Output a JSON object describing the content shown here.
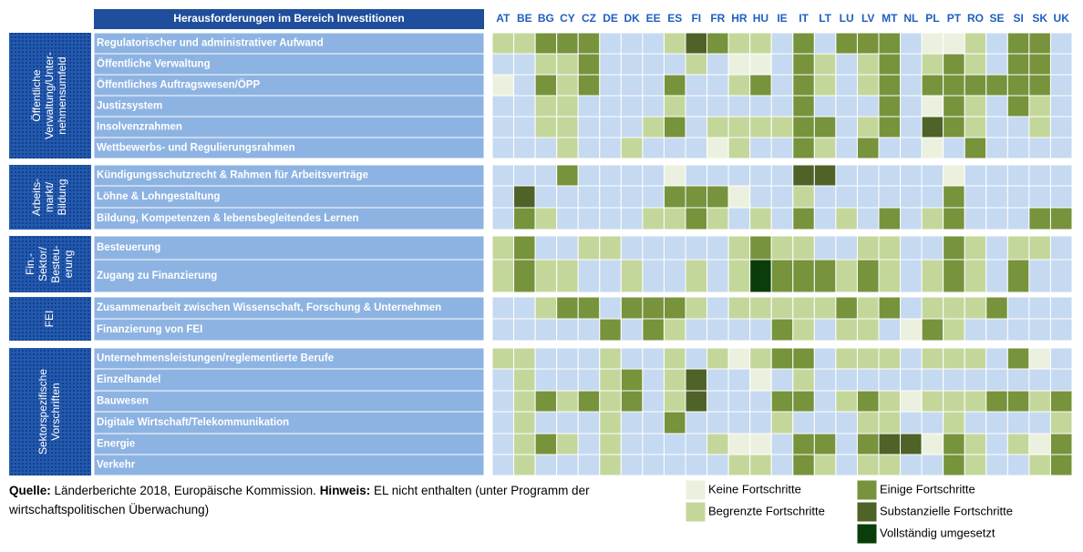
{
  "header": {
    "title": "Herausforderungen im Bereich Investitionen",
    "countries": [
      "AT",
      "BE",
      "BG",
      "CY",
      "CZ",
      "DE",
      "DK",
      "EE",
      "ES",
      "FI",
      "FR",
      "HR",
      "HU",
      "IE",
      "IT",
      "LT",
      "LU",
      "LV",
      "MT",
      "NL",
      "PL",
      "PT",
      "RO",
      "SE",
      "SI",
      "SK",
      "UK"
    ]
  },
  "no_rating_color": "#c5d9f1",
  "legend": [
    {
      "label": "Keine Fortschritte",
      "color": "#ebf1de"
    },
    {
      "label": "Begrenzte Fortschritte",
      "color": "#c4d79b"
    },
    {
      "label": "Einige Fortschritte",
      "color": "#77933c"
    },
    {
      "label": "Substanzielle Fortschritte",
      "color": "#4f6228"
    },
    {
      "label": "Vollständig umgesetzt",
      "color": "#0a3d0a"
    }
  ],
  "groups": [
    {
      "label": [
        "Öffentliche",
        "Verwaltung/Unter-",
        "nehmensumfeld"
      ],
      "rows": [
        {
          "label": "Regulatorischer und administrativer Aufwand",
          "cells": [
            2,
            2,
            3,
            3,
            3,
            0,
            0,
            0,
            2,
            4,
            3,
            2,
            2,
            0,
            3,
            0,
            3,
            3,
            3,
            0,
            1,
            1,
            2,
            0,
            3,
            3,
            0
          ]
        },
        {
          "label": "Öffentliche Verwaltung",
          "cells": [
            0,
            0,
            2,
            2,
            3,
            0,
            0,
            0,
            0,
            2,
            0,
            1,
            1,
            0,
            3,
            2,
            0,
            2,
            3,
            0,
            2,
            3,
            2,
            0,
            3,
            3,
            0
          ]
        },
        {
          "label": "Öffentliches Auftragswesen/ÖPP",
          "cells": [
            1,
            0,
            3,
            2,
            3,
            0,
            0,
            0,
            3,
            0,
            0,
            2,
            3,
            0,
            3,
            2,
            0,
            2,
            3,
            0,
            3,
            3,
            3,
            3,
            3,
            3,
            0
          ]
        },
        {
          "label": "Justizsystem",
          "cells": [
            0,
            0,
            2,
            2,
            0,
            0,
            0,
            0,
            2,
            0,
            0,
            0,
            0,
            0,
            3,
            0,
            0,
            0,
            3,
            0,
            1,
            3,
            2,
            0,
            3,
            2,
            0
          ]
        },
        {
          "label": "Insolvenzrahmen",
          "cells": [
            0,
            0,
            2,
            2,
            0,
            0,
            0,
            2,
            3,
            0,
            2,
            2,
            2,
            2,
            3,
            3,
            0,
            2,
            3,
            0,
            4,
            3,
            2,
            0,
            0,
            2,
            0
          ]
        },
        {
          "label": "Wettbewerbs- und Regulierungsrahmen",
          "cells": [
            0,
            0,
            0,
            2,
            0,
            0,
            2,
            0,
            0,
            0,
            1,
            2,
            0,
            0,
            3,
            2,
            0,
            3,
            0,
            0,
            1,
            0,
            3,
            0,
            0,
            0,
            0
          ]
        }
      ]
    },
    {
      "label": [
        "Arbeits-",
        "markt/",
        "Bildung"
      ],
      "rows": [
        {
          "label": "Kündigungsschutzrecht & Rahmen für Arbeitsverträge",
          "cells": [
            0,
            0,
            0,
            3,
            0,
            0,
            0,
            0,
            1,
            0,
            0,
            0,
            0,
            0,
            4,
            4,
            0,
            0,
            0,
            0,
            0,
            1,
            0,
            0,
            0,
            0,
            0
          ]
        },
        {
          "label": "Löhne & Lohngestaltung",
          "cells": [
            0,
            4,
            0,
            0,
            0,
            0,
            0,
            0,
            3,
            3,
            3,
            1,
            0,
            0,
            2,
            0,
            0,
            0,
            0,
            0,
            0,
            3,
            0,
            0,
            0,
            0,
            0
          ]
        },
        {
          "label": "Bildung, Kompetenzen & lebensbegleitendes Lernen",
          "cells": [
            0,
            3,
            2,
            0,
            0,
            0,
            0,
            2,
            2,
            3,
            2,
            0,
            2,
            0,
            3,
            0,
            2,
            0,
            3,
            0,
            2,
            3,
            0,
            0,
            0,
            3,
            3
          ]
        }
      ]
    },
    {
      "label": [
        "Fin.-",
        "Sektor/",
        "Besteu-",
        "erung"
      ],
      "rows": [
        {
          "label": "Besteuerung",
          "cells": [
            2,
            3,
            0,
            0,
            2,
            2,
            0,
            0,
            0,
            0,
            0,
            2,
            3,
            2,
            2,
            0,
            0,
            2,
            2,
            0,
            0,
            3,
            2,
            0,
            2,
            2,
            0
          ]
        },
        {
          "label": "Zugang zu Finanzierung",
          "cells": [
            2,
            3,
            2,
            2,
            0,
            0,
            2,
            0,
            0,
            2,
            0,
            2,
            5,
            3,
            3,
            3,
            2,
            3,
            2,
            0,
            2,
            3,
            2,
            0,
            3,
            0,
            0
          ]
        }
      ]
    },
    {
      "label": [
        "FEI"
      ],
      "rows": [
        {
          "label": "Zusammenarbeit zwischen Wissenschaft, Forschung & Unternehmen",
          "cells": [
            0,
            0,
            2,
            3,
            3,
            0,
            3,
            3,
            3,
            2,
            0,
            2,
            2,
            2,
            2,
            2,
            3,
            2,
            3,
            0,
            2,
            2,
            2,
            3,
            0,
            0,
            0
          ]
        },
        {
          "label": "Finanzierung von FEI",
          "cells": [
            0,
            0,
            0,
            0,
            0,
            3,
            0,
            3,
            2,
            0,
            0,
            0,
            0,
            3,
            2,
            0,
            2,
            2,
            0,
            1,
            3,
            2,
            0,
            0,
            0,
            0,
            0
          ]
        }
      ]
    },
    {
      "label": [
        "Sektorspezifische",
        "Vorschriften"
      ],
      "rows": [
        {
          "label": "Unternehmensleistungen/reglementierte Berufe",
          "cells": [
            2,
            2,
            0,
            0,
            0,
            2,
            0,
            0,
            2,
            0,
            2,
            1,
            2,
            3,
            3,
            0,
            2,
            2,
            2,
            0,
            2,
            2,
            2,
            0,
            3,
            1,
            0
          ]
        },
        {
          "label": "Einzelhandel",
          "cells": [
            0,
            2,
            0,
            0,
            0,
            2,
            3,
            0,
            2,
            4,
            0,
            0,
            1,
            0,
            2,
            0,
            0,
            0,
            0,
            0,
            0,
            0,
            0,
            0,
            0,
            0,
            0
          ]
        },
        {
          "label": "Bauwesen",
          "cells": [
            0,
            2,
            3,
            2,
            3,
            2,
            3,
            0,
            2,
            4,
            0,
            0,
            0,
            3,
            3,
            0,
            2,
            3,
            2,
            1,
            2,
            2,
            2,
            3,
            3,
            2,
            3
          ]
        },
        {
          "label": "Digitale Wirtschaft/Telekommunikation",
          "cells": [
            0,
            2,
            0,
            0,
            0,
            2,
            0,
            0,
            3,
            0,
            0,
            0,
            0,
            2,
            0,
            0,
            0,
            2,
            2,
            0,
            0,
            2,
            0,
            0,
            0,
            0,
            2
          ]
        },
        {
          "label": "Energie",
          "cells": [
            0,
            2,
            3,
            2,
            0,
            2,
            0,
            0,
            0,
            0,
            2,
            1,
            1,
            0,
            3,
            3,
            0,
            3,
            4,
            4,
            1,
            3,
            2,
            0,
            2,
            1,
            3
          ]
        },
        {
          "label": "Verkehr",
          "cells": [
            0,
            2,
            0,
            0,
            0,
            2,
            0,
            0,
            0,
            0,
            0,
            2,
            2,
            0,
            3,
            2,
            0,
            2,
            2,
            0,
            0,
            3,
            2,
            0,
            0,
            2,
            3
          ]
        }
      ]
    }
  ],
  "footnote": {
    "source_label": "Quelle:",
    "source_text": " Länderberichte 2018, Europäische Kommission. ",
    "note_label": "Hinweis:",
    "note_text": " EL nicht enthalten (unter Programm der wirtschaftspolitischen Überwachung)"
  }
}
